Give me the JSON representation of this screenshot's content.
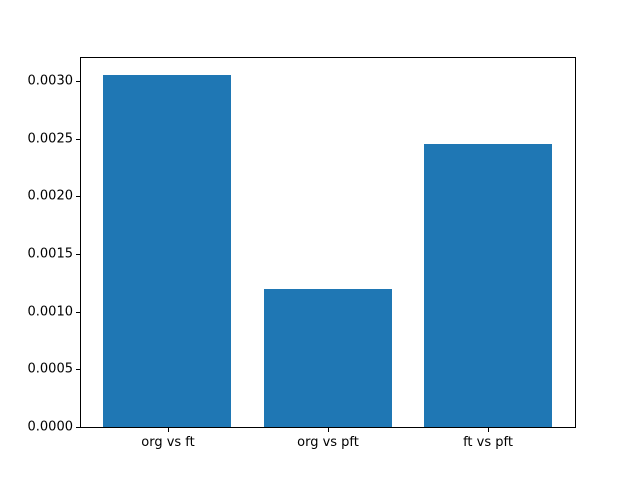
{
  "figure": {
    "background_color": "#ffffff",
    "spine_color": "#000000",
    "tick_label_color": "#000000"
  },
  "chart_data": {
    "type": "bar",
    "title": "",
    "xlabel": "",
    "ylabel": "",
    "categories": [
      "org vs ft",
      "org vs pft",
      "ft vs pft"
    ],
    "values": [
      0.00305,
      0.0012,
      0.00245
    ],
    "bar_color": "#1f77b4",
    "bar_width_fraction": 0.8,
    "xlim": [
      -0.54,
      2.54
    ],
    "ylim": [
      0,
      0.0032
    ],
    "ytick_values": [
      0.0,
      0.0005,
      0.001,
      0.0015,
      0.002,
      0.0025,
      0.003
    ],
    "ytick_labels": [
      "0.0000",
      "0.0005",
      "0.0010",
      "0.0015",
      "0.0020",
      "0.0025",
      "0.0030"
    ],
    "grid": false,
    "legend": null
  }
}
